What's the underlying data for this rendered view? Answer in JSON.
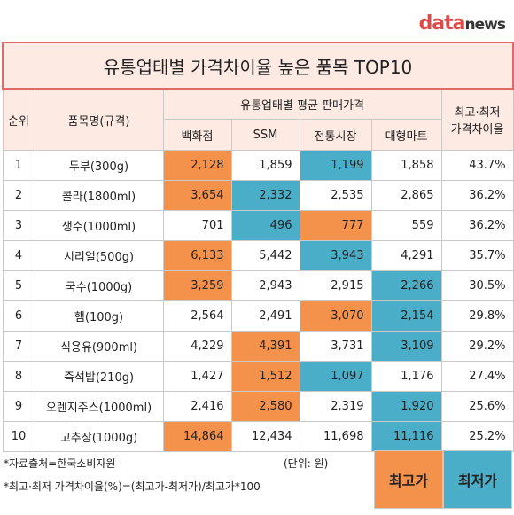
{
  "logo": {
    "part1": "data",
    "part2": "news"
  },
  "title": "유통업태별 가격차이율 높은 품목 TOP10",
  "header": {
    "rank": "순위",
    "item": "품목명(규격)",
    "group": "유통업태별 평균 판매가격",
    "stores": [
      "백화점",
      "SSM",
      "전통시장",
      "대형마트"
    ],
    "rate": [
      "최고·최저",
      "가격차이율"
    ]
  },
  "rows": [
    [
      "1",
      "두부(300g)",
      "2,128",
      "1,859",
      "1,199",
      "1,858",
      "43.7%"
    ],
    [
      "2",
      "콜라(1800ml)",
      "3,654",
      "2,332",
      "2,535",
      "2,865",
      "36.2%"
    ],
    [
      "3",
      "생수(1000ml)",
      "701",
      "496",
      "777",
      "559",
      "36.2%"
    ],
    [
      "4",
      "시리얼(500g)",
      "6,133",
      "5,442",
      "3,943",
      "4,291",
      "35.7%"
    ],
    [
      "5",
      "국수(1000g)",
      "3,259",
      "2,943",
      "2,915",
      "2,266",
      "30.5%"
    ],
    [
      "6",
      "햄(100g)",
      "2,564",
      "2,491",
      "3,070",
      "2,154",
      "29.8%"
    ],
    [
      "7",
      "식용유(900ml)",
      "4,229",
      "4,391",
      "3,731",
      "3,109",
      "29.2%"
    ],
    [
      "8",
      "즉석밥(210g)",
      "1,427",
      "1,512",
      "1,097",
      "1,176",
      "27.4%"
    ],
    [
      "9",
      "오렌지주스(1000ml)",
      "2,416",
      "2,580",
      "2,319",
      "1,920",
      "25.6%"
    ],
    [
      "10",
      "고추장(1000g)",
      "14,864",
      "12,434",
      "11,698",
      "11,116",
      "25.2%"
    ]
  ],
  "notes": {
    "source": "*자료출처=한국소비자원",
    "unit": "(단위: 원)",
    "formula": "*최고·최저 가격차이율(%)=(최고가-최저가)/최고가*100"
  },
  "legend": {
    "high": "최고가",
    "low": "최저가",
    "high_color": "#f4914b",
    "low_color": "#4aaec8"
  }
}
